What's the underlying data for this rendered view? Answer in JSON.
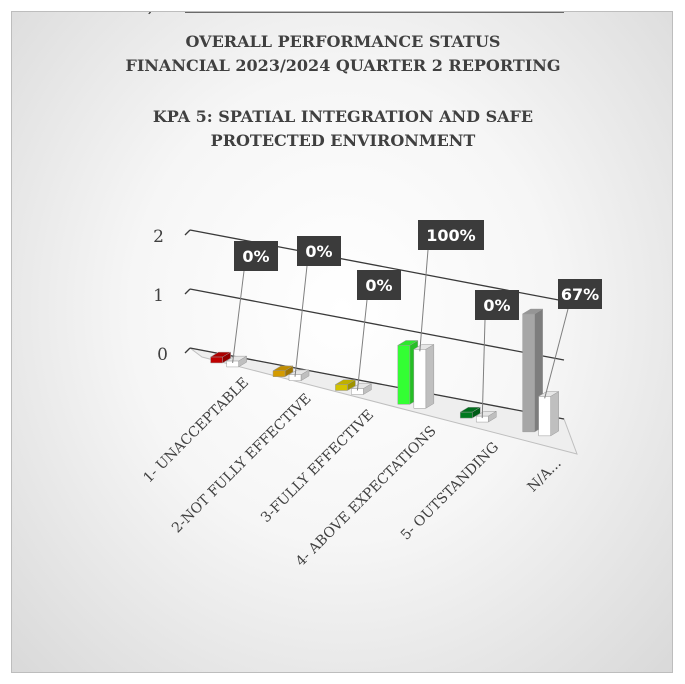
{
  "chart_data": {
    "type": "bar",
    "title_lines": [
      "OVERALL PERFORMANCE STATUS",
      "FINANCIAL 2023/2024 QUARTER 2 REPORTING",
      "KPA 5: SPATIAL INTEGRATION AND SAFE",
      "PROTECTED ENVIRONMENT"
    ],
    "categories": [
      "1- UNACCEPTABLE",
      "2-NOT FULLY EFFECTIVE",
      "3-FULLY EFFECTIVE",
      "4- ABOVE EXPECTATIONS",
      "5- OUTSTANDING",
      "N/A..."
    ],
    "series": [
      {
        "values": [
          0,
          0,
          0,
          1,
          0,
          2
        ]
      },
      {
        "values": [
          0,
          0,
          0,
          1,
          0,
          0.67
        ]
      }
    ],
    "data_labels": [
      "0%",
      "0%",
      "0%",
      "100%",
      "0%",
      "67%"
    ],
    "bar_colors": [
      "#c00000",
      "#d49b00",
      "#d4c400",
      "#33ff33",
      "#007a1f",
      "#a6a6a6"
    ],
    "secondary_color": "#ffffff",
    "y_ticks": [
      "0",
      "0,5",
      "1",
      "1,5",
      "2"
    ],
    "ylim": [
      0,
      2
    ],
    "grid": true,
    "style": "3d-column"
  }
}
